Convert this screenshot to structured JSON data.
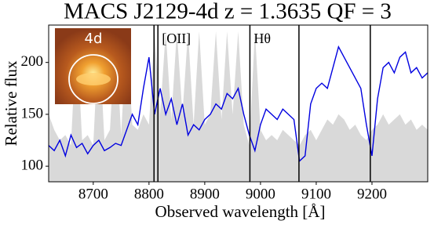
{
  "chart_data": {
    "type": "line",
    "title": "MACS J2129-4d z = 1.3635 QF = 3",
    "x_label": "Observed wavelength  [Å]",
    "y_label": "Relative flux",
    "inset_label": "4d",
    "annotations": [
      "[OII]",
      "Hθ"
    ],
    "vlines": [
      8809,
      8816,
      8981,
      9069,
      9197
    ],
    "x": [
      8620,
      8630,
      8640,
      8650,
      8660,
      8670,
      8680,
      8690,
      8700,
      8710,
      8720,
      8730,
      8740,
      8750,
      8760,
      8770,
      8780,
      8790,
      8800,
      8810,
      8820,
      8830,
      8840,
      8850,
      8860,
      8870,
      8880,
      8890,
      8900,
      8910,
      8920,
      8930,
      8940,
      8950,
      8960,
      8970,
      8980,
      8990,
      9000,
      9010,
      9020,
      9030,
      9040,
      9050,
      9060,
      9070,
      9080,
      9090,
      9100,
      9110,
      9120,
      9130,
      9140,
      9150,
      9160,
      9170,
      9180,
      9190,
      9200,
      9210,
      9220,
      9230,
      9240,
      9250,
      9260,
      9270,
      9280,
      9290,
      9300
    ],
    "series": [
      {
        "type": "area",
        "color": "#d9d9d9",
        "values": [
          150,
          135,
          125,
          130,
          120,
          230,
          125,
          130,
          120,
          230,
          125,
          135,
          230,
          130,
          230,
          140,
          135,
          150,
          140,
          230,
          150,
          230,
          145,
          230,
          150,
          230,
          140,
          230,
          140,
          150,
          230,
          145,
          230,
          150,
          230,
          140,
          120,
          230,
          135,
          125,
          130,
          125,
          135,
          130,
          125,
          120,
          130,
          135,
          125,
          135,
          145,
          140,
          150,
          145,
          135,
          140,
          130,
          125,
          135,
          140,
          150,
          140,
          145,
          150,
          140,
          145,
          135,
          140,
          135
        ]
      },
      {
        "type": "line",
        "color": "#0000e0",
        "values": [
          120,
          115,
          125,
          110,
          130,
          118,
          122,
          112,
          120,
          125,
          115,
          118,
          122,
          120,
          135,
          150,
          140,
          175,
          205,
          150,
          175,
          150,
          165,
          140,
          160,
          130,
          140,
          135,
          145,
          150,
          160,
          155,
          170,
          165,
          175,
          150,
          130,
          115,
          140,
          155,
          150,
          145,
          155,
          150,
          145,
          105,
          110,
          160,
          175,
          180,
          175,
          195,
          215,
          205,
          195,
          185,
          175,
          140,
          110,
          165,
          195,
          200,
          190,
          205,
          210,
          190,
          195,
          185,
          190
        ]
      }
    ],
    "xlim": [
      8620,
      9300
    ],
    "ylim": [
      85,
      236
    ],
    "xticks": [
      8700,
      8800,
      8900,
      9000,
      9100,
      9200
    ],
    "yticks": [
      100,
      150,
      200
    ]
  }
}
